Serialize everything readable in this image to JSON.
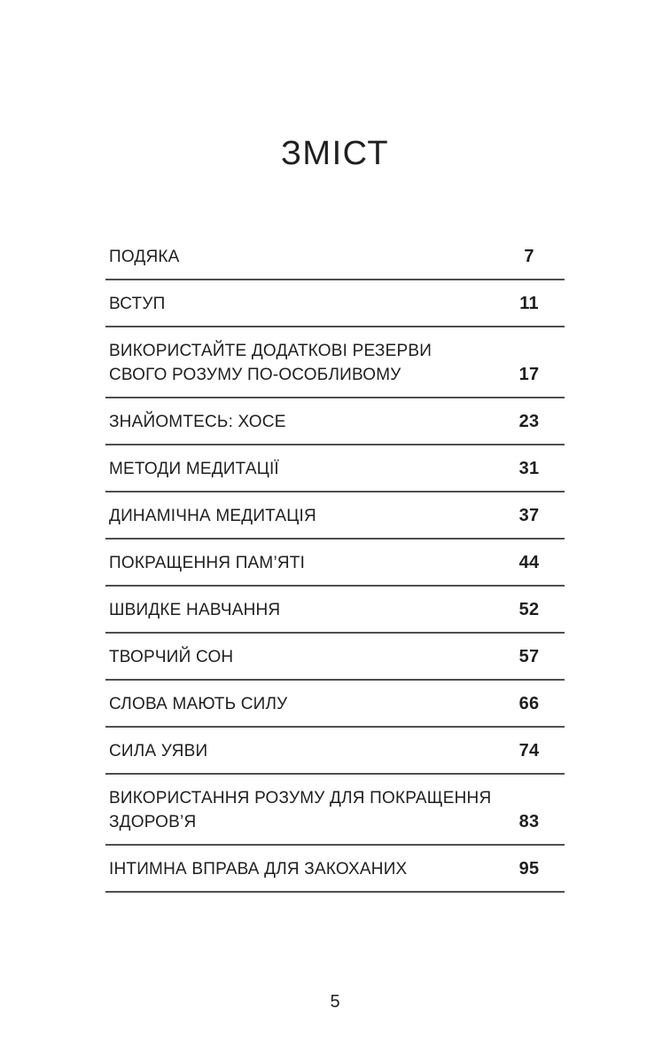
{
  "document": {
    "heading": "ЗМІСТ",
    "footer_page_number": "5"
  },
  "toc": {
    "entries": [
      {
        "title": "ПОДЯКА",
        "page": "7"
      },
      {
        "title": "ВСТУП",
        "page": "11"
      },
      {
        "title": "ВИКОРИСТАЙТЕ ДОДАТКОВІ РЕЗЕРВИ СВОГО РОЗУМУ ПО-ОСОБЛИВОМУ",
        "page": "17"
      },
      {
        "title": "ЗНАЙОМТЕСЬ: ХОСЕ",
        "page": "23"
      },
      {
        "title": "МЕТОДИ МЕДИТАЦІЇ",
        "page": "31"
      },
      {
        "title": "ДИНАМІЧНА МЕДИТАЦІЯ",
        "page": "37"
      },
      {
        "title": "ПОКРАЩЕННЯ ПАМ’ЯТІ",
        "page": "44"
      },
      {
        "title": "ШВИДКЕ НАВЧАННЯ",
        "page": "52"
      },
      {
        "title": "ТВОРЧИЙ СОН",
        "page": "57"
      },
      {
        "title": "СЛОВА МАЮТЬ СИЛУ",
        "page": "66"
      },
      {
        "title": "СИЛА УЯВИ",
        "page": "74"
      },
      {
        "title": "ВИКОРИСТАННЯ РОЗУМУ ДЛЯ ПОКРАЩЕННЯ ЗДОРОВ’Я",
        "page": "83"
      },
      {
        "title": "ІНТИМНА ВПРАВА ДЛЯ ЗАКОХАНИХ",
        "page": "95"
      }
    ]
  },
  "colors": {
    "background": "#ffffff",
    "text": "#1f1f1f",
    "rule": "#4f4f4f"
  }
}
